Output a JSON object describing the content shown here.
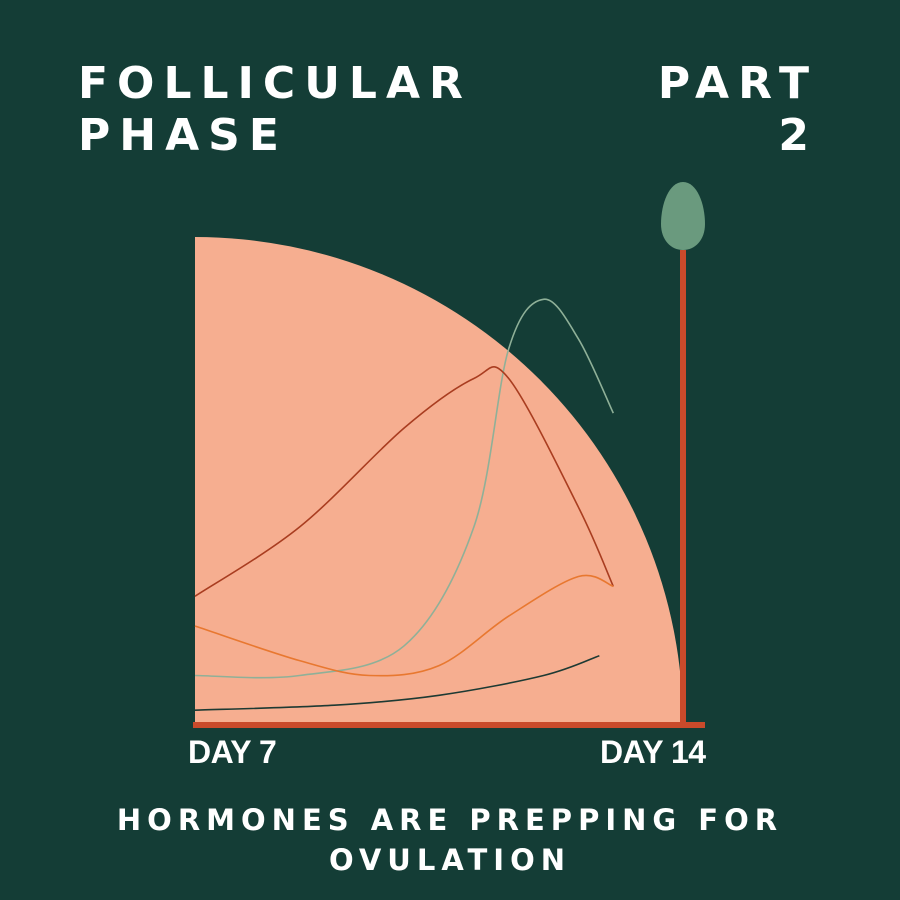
{
  "header": {
    "title_line1": "FOLLICULAR",
    "title_line2": "PHASE",
    "part_label": "PART",
    "part_number": "2"
  },
  "footer": {
    "caption_line1": "HORMONES ARE PREPPING FOR",
    "caption_line2": "OVULATION"
  },
  "colors": {
    "background": "#143d36",
    "area_fill": "#f6ae90",
    "axis": "#c94a2b",
    "ovulation_marker": "#6a9a7e"
  },
  "chart_data": {
    "type": "line",
    "x_tick_labels": [
      "DAY 7",
      "DAY 14"
    ],
    "xlim": [
      7,
      14
    ],
    "ylim": [
      0,
      100
    ],
    "area": {
      "shape": "quarter-circle",
      "color": "#f6ae90"
    },
    "ovulation_marker": {
      "x": 14,
      "icon": "egg-icon",
      "color": "#6a9a7e"
    },
    "series": [
      {
        "color": "#8fb098",
        "points": [
          [
            7,
            10
          ],
          [
            8.5,
            10
          ],
          [
            10,
            16
          ],
          [
            11,
            40
          ],
          [
            11.5,
            76
          ],
          [
            12,
            86
          ],
          [
            12.5,
            78
          ],
          [
            13,
            63
          ]
        ]
      },
      {
        "color": "#a93d20",
        "points": [
          [
            7,
            26
          ],
          [
            8.5,
            40
          ],
          [
            10,
            60
          ],
          [
            11,
            70
          ],
          [
            11.5,
            70
          ],
          [
            12.5,
            44
          ],
          [
            13,
            28
          ]
        ]
      },
      {
        "color": "#e87830",
        "points": [
          [
            7,
            20
          ],
          [
            8.5,
            13
          ],
          [
            9.5,
            10
          ],
          [
            10.5,
            12
          ],
          [
            11.5,
            22
          ],
          [
            12.5,
            30
          ],
          [
            13,
            28
          ]
        ]
      },
      {
        "color": "#1d3a33",
        "points": [
          [
            7,
            3
          ],
          [
            9,
            4
          ],
          [
            10.5,
            6
          ],
          [
            12,
            10
          ],
          [
            12.8,
            14
          ]
        ]
      }
    ]
  }
}
